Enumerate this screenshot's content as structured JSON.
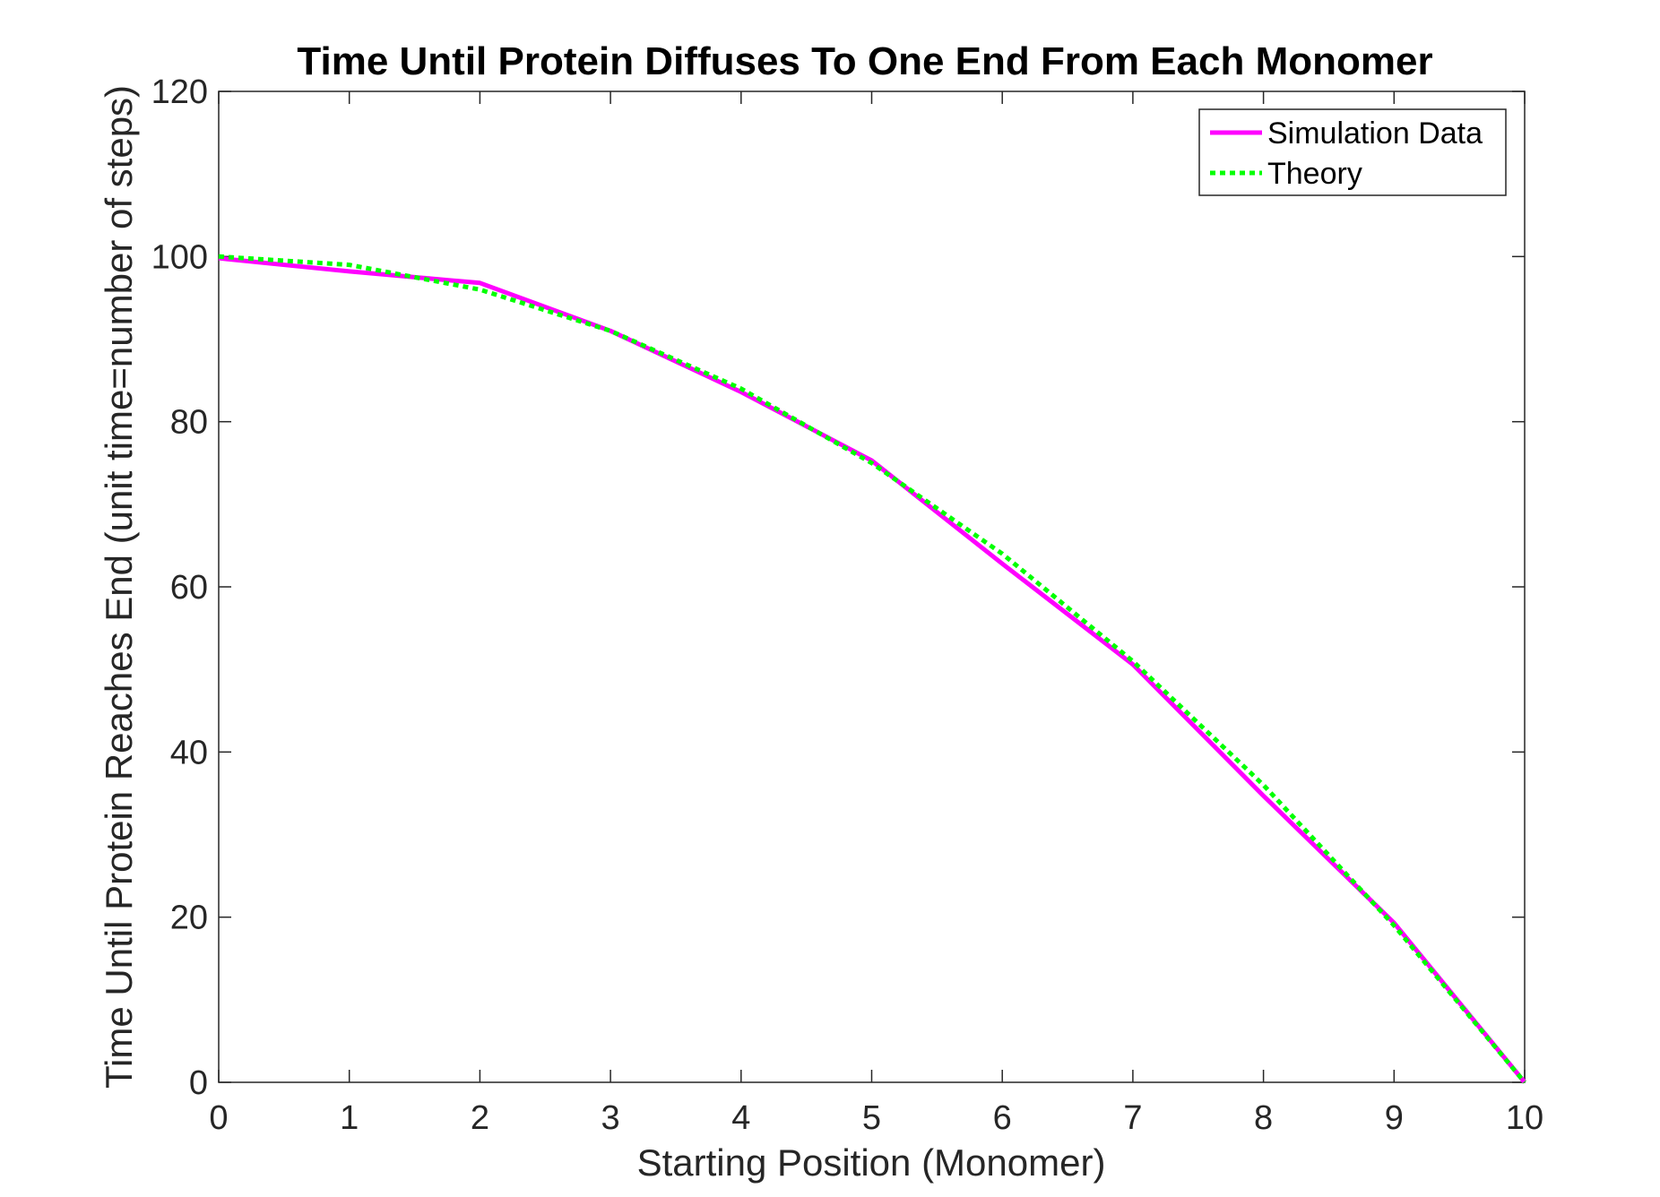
{
  "chart_data": {
    "type": "line",
    "title": "Time Until Protein Diffuses To One End From Each Monomer",
    "xlabel": "Starting Position (Monomer)",
    "ylabel": "Time Until Protein Reaches End (unit time=number of steps)",
    "xlim": [
      0,
      10
    ],
    "ylim": [
      0,
      120
    ],
    "xticks": [
      "0",
      "1",
      "2",
      "3",
      "4",
      "5",
      "6",
      "7",
      "8",
      "9",
      "10"
    ],
    "yticks": [
      "0",
      "20",
      "40",
      "60",
      "80",
      "100",
      "120"
    ],
    "grid": false,
    "legend_position": "top-right",
    "series": [
      {
        "name": "Simulation Data",
        "color": "#ff00ff",
        "style": "solid",
        "x": [
          0,
          1,
          2,
          3,
          4,
          5,
          6,
          7,
          8,
          9,
          10
        ],
        "y": [
          99.8,
          98.2,
          96.8,
          91.0,
          83.6,
          75.3,
          62.8,
          50.6,
          34.7,
          19.3,
          0
        ]
      },
      {
        "name": "Theory",
        "color": "#00ff00",
        "style": "dotted",
        "x": [
          0,
          1,
          2,
          3,
          4,
          5,
          6,
          7,
          8,
          9,
          10
        ],
        "y": [
          100,
          99,
          96,
          91,
          84,
          75,
          64,
          51,
          36,
          19,
          0
        ]
      }
    ]
  }
}
